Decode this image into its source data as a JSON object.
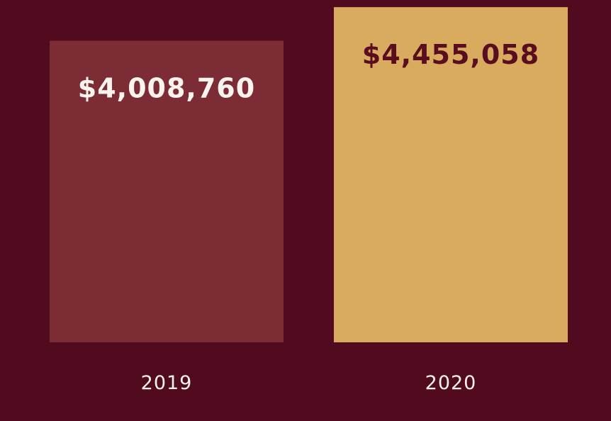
{
  "colors": {
    "background": "#520b1e",
    "bar_2019": "#7b2c34",
    "bar_2020": "#d9ab5e",
    "label_light": "#fbf3ee",
    "label_dark": "#5a0d1f",
    "category_text": "#fbf3ee"
  },
  "chart_data": {
    "type": "bar",
    "categories": [
      "2019",
      "2020"
    ],
    "values": [
      4008760,
      4455058
    ],
    "value_labels": [
      "$4,008,760",
      "$4,455,058"
    ],
    "title": "",
    "xlabel": "",
    "ylabel": "",
    "ylim": [
      0,
      4550000
    ],
    "grid": false,
    "legend": "none"
  }
}
